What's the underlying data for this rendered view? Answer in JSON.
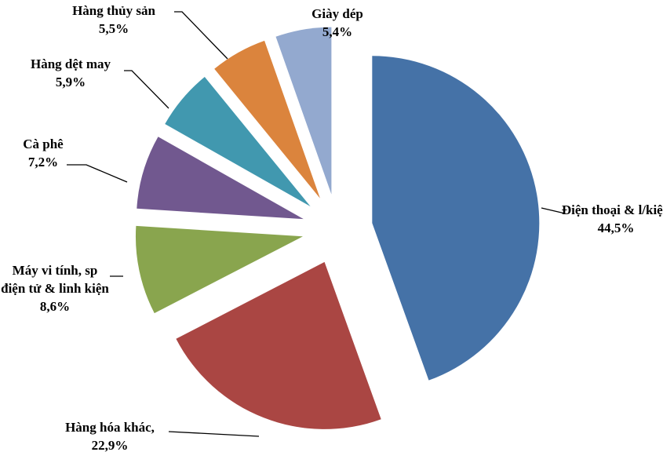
{
  "chart_data": {
    "type": "pie",
    "categories": [
      "Điện thoại & l/kiện",
      "Hàng hóa khác,",
      "Máy vi tính, sp điện tử & linh kiện",
      "Cà phê",
      "Hàng dệt may",
      "Hàng thủy sản",
      "Giày dép"
    ],
    "values": [
      44.5,
      22.9,
      8.6,
      7.2,
      5.9,
      5.5,
      5.4
    ],
    "value_labels": [
      "44,5%",
      "22,9%",
      "8,6%",
      "7,2%",
      "5,9%",
      "5,5%",
      "5,4%"
    ],
    "colors": [
      "#4572a7",
      "#aa4643",
      "#89a54e",
      "#71588f",
      "#4198af",
      "#db843d",
      "#93a9cf"
    ]
  }
}
